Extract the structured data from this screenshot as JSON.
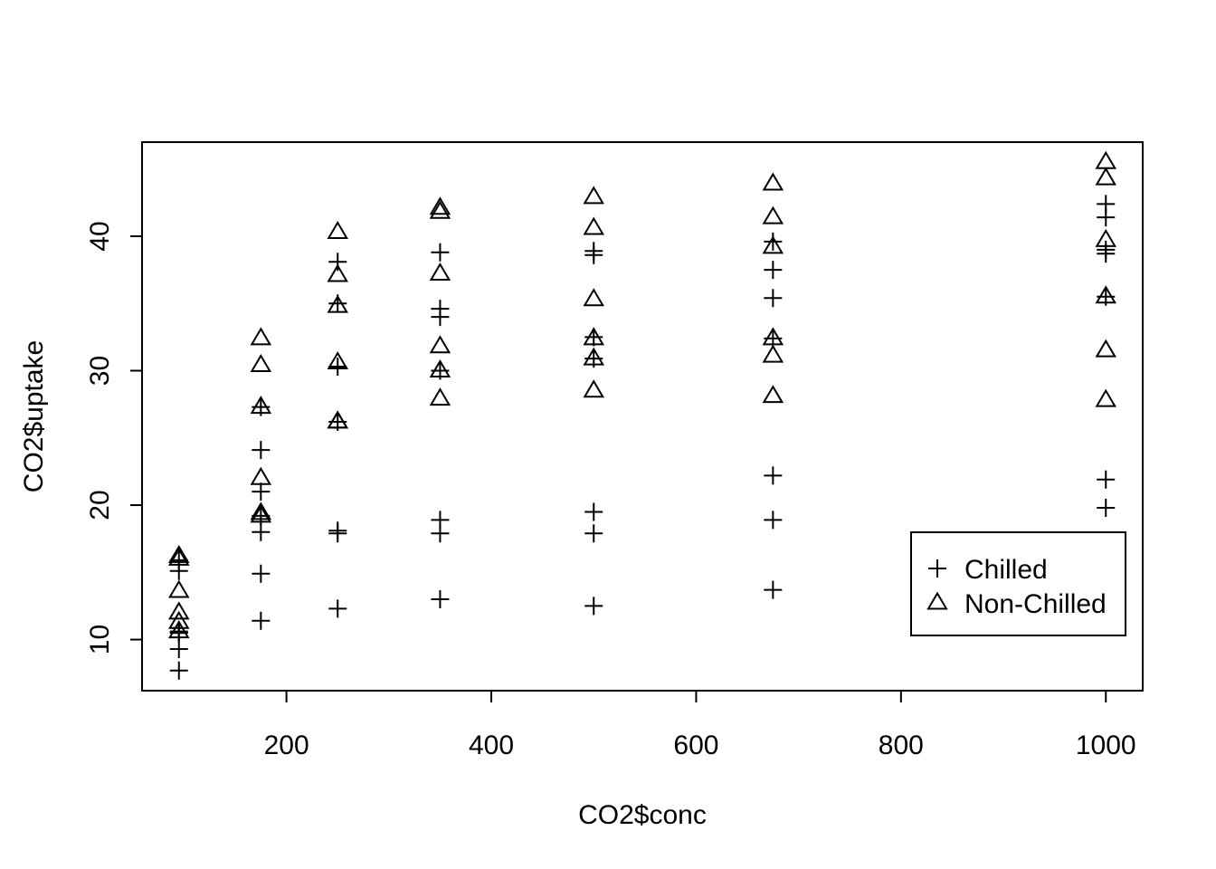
{
  "chart_data": {
    "type": "scatter",
    "title": "",
    "xlabel": "CO2$conc",
    "ylabel": "CO2$uptake",
    "xlim": [
      59,
      1036
    ],
    "ylim": [
      6.2,
      47.0
    ],
    "x_ticks": [
      200,
      400,
      600,
      800,
      1000
    ],
    "y_ticks": [
      10,
      20,
      30,
      40
    ],
    "grid": false,
    "legend": {
      "position": "bottom-right"
    },
    "series": [
      {
        "name": "Chilled",
        "marker": "plus",
        "color": "#000000",
        "points": [
          [
            95,
            10.6
          ],
          [
            175,
            19.2
          ],
          [
            250,
            26.2
          ],
          [
            350,
            30.0
          ],
          [
            500,
            30.9
          ],
          [
            675,
            32.4
          ],
          [
            1000,
            35.5
          ],
          [
            95,
            10.5
          ],
          [
            175,
            14.9
          ],
          [
            250,
            18.1
          ],
          [
            350,
            18.9
          ],
          [
            500,
            19.5
          ],
          [
            675,
            22.2
          ],
          [
            1000,
            21.9
          ],
          [
            95,
            7.7
          ],
          [
            175,
            11.4
          ],
          [
            250,
            12.3
          ],
          [
            350,
            13.0
          ],
          [
            500,
            12.5
          ],
          [
            675,
            13.7
          ],
          [
            1000,
            19.8
          ],
          [
            95,
            15.1
          ],
          [
            175,
            21.0
          ],
          [
            250,
            38.1
          ],
          [
            350,
            34.0
          ],
          [
            500,
            38.9
          ],
          [
            675,
            39.6
          ],
          [
            1000,
            41.4
          ],
          [
            95,
            9.3
          ],
          [
            175,
            27.3
          ],
          [
            250,
            35.0
          ],
          [
            350,
            38.8
          ],
          [
            500,
            38.6
          ],
          [
            675,
            37.5
          ],
          [
            1000,
            42.4
          ],
          [
            95,
            10.5
          ],
          [
            175,
            24.1
          ],
          [
            250,
            30.3
          ],
          [
            350,
            34.6
          ],
          [
            500,
            32.5
          ],
          [
            675,
            35.4
          ],
          [
            1000,
            38.7
          ],
          [
            95,
            15.9
          ],
          [
            175,
            18.0
          ],
          [
            250,
            17.9
          ],
          [
            350,
            17.9
          ],
          [
            500,
            17.9
          ],
          [
            675,
            18.9
          ],
          [
            1000,
            39.0
          ]
        ]
      },
      {
        "name": "Non-Chilled",
        "marker": "triangle",
        "color": "#000000",
        "points": [
          [
            95,
            16.0
          ],
          [
            175,
            30.4
          ],
          [
            250,
            34.8
          ],
          [
            350,
            37.2
          ],
          [
            500,
            35.3
          ],
          [
            675,
            39.2
          ],
          [
            1000,
            39.7
          ],
          [
            95,
            13.6
          ],
          [
            175,
            27.3
          ],
          [
            250,
            37.1
          ],
          [
            350,
            41.8
          ],
          [
            500,
            40.6
          ],
          [
            675,
            41.4
          ],
          [
            1000,
            44.3
          ],
          [
            95,
            16.2
          ],
          [
            175,
            32.4
          ],
          [
            250,
            40.3
          ],
          [
            350,
            42.1
          ],
          [
            500,
            42.9
          ],
          [
            675,
            43.9
          ],
          [
            1000,
            45.5
          ],
          [
            95,
            11.3
          ],
          [
            175,
            19.4
          ],
          [
            250,
            26.2
          ],
          [
            350,
            31.8
          ],
          [
            500,
            30.9
          ],
          [
            675,
            32.4
          ],
          [
            1000,
            35.5
          ],
          [
            95,
            10.6
          ],
          [
            175,
            19.2
          ],
          [
            250,
            26.2
          ],
          [
            350,
            30.0
          ],
          [
            500,
            28.5
          ],
          [
            675,
            28.1
          ],
          [
            1000,
            27.8
          ],
          [
            95,
            12.0
          ],
          [
            175,
            22.0
          ],
          [
            250,
            30.6
          ],
          [
            350,
            27.9
          ],
          [
            500,
            32.4
          ],
          [
            675,
            31.1
          ],
          [
            1000,
            31.5
          ]
        ]
      }
    ]
  }
}
